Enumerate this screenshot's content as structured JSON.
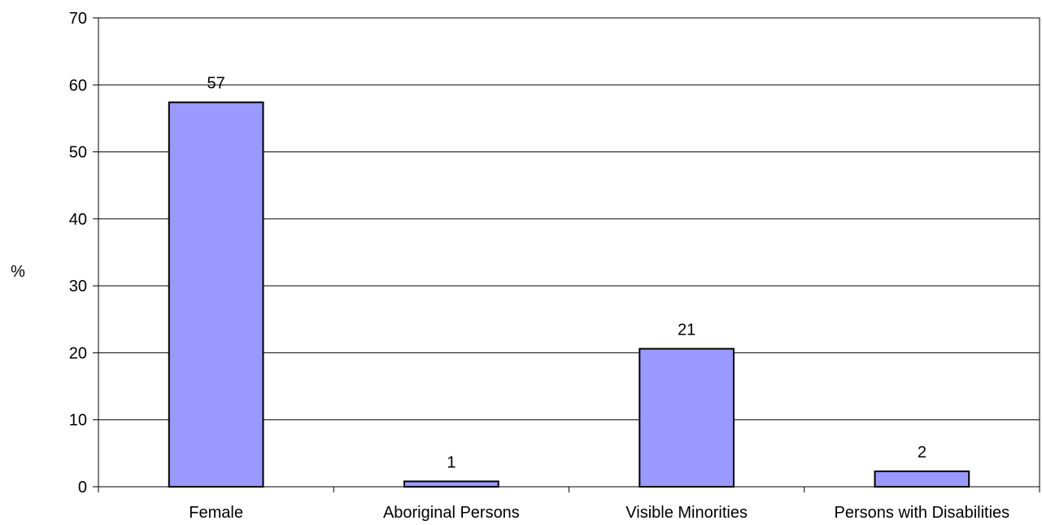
{
  "chart_data": {
    "type": "bar",
    "title": "",
    "xlabel": "",
    "ylabel": "%",
    "categories": [
      "Female",
      "Aboriginal Persons",
      "Visible Minorities",
      "Persons with Disabilities"
    ],
    "values": [
      57.4,
      0.8,
      20.6,
      2.3
    ],
    "data_labels": [
      "57",
      "1",
      "21",
      "2"
    ],
    "ylim": [
      0,
      70
    ],
    "yticks": [
      0,
      10,
      20,
      30,
      40,
      50,
      60,
      70
    ],
    "ytick_labels": [
      "0",
      "10",
      "20",
      "30",
      "40",
      "50",
      "60",
      "70"
    ],
    "grid": true,
    "legend": "none",
    "colors": {
      "bar_fill": "#9999ff",
      "bar_stroke": "#000000",
      "grid": "#000000",
      "axis": "#000000",
      "text": "#000000",
      "background": "#ffffff"
    }
  }
}
